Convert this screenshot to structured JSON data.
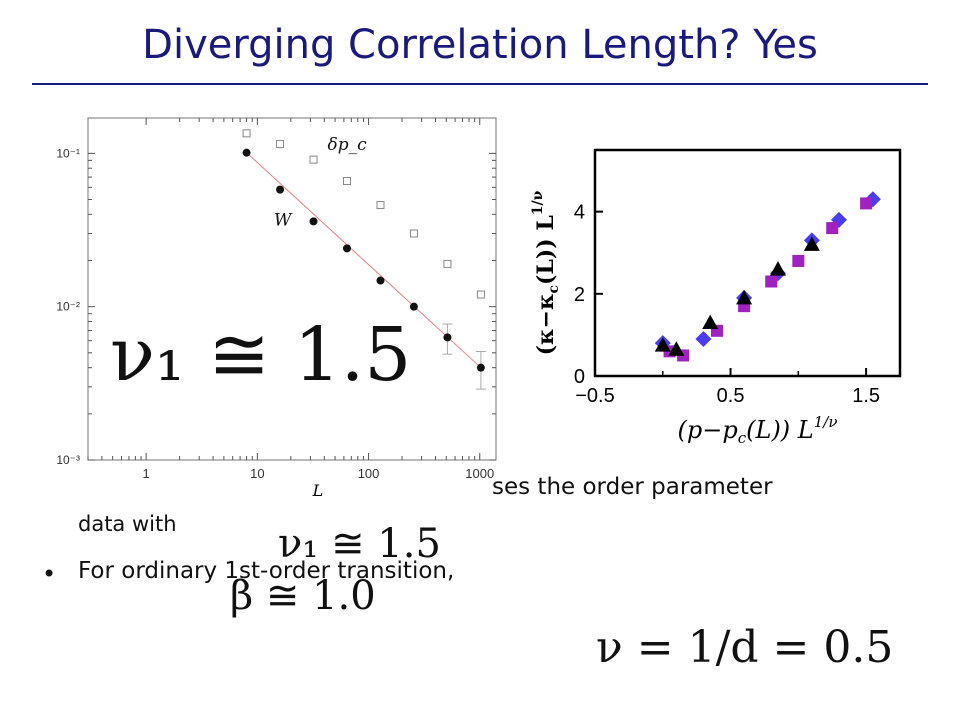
{
  "slide": {
    "title": "Diverging Correlation Length? Yes",
    "text_line1_visible": "ses the order parameter",
    "text_line2": "data with",
    "bullet_text": "For ordinary 1st-order transition,",
    "eq_nu1": "ν₁ ≅ 1.5",
    "eq_nu1_small": "ν₁ ≅ 1.5",
    "eq_beta": "β ≅ 1.0",
    "eq_nu_d": "ν = 1/d = 0.5"
  },
  "chart_data": [
    {
      "type": "scatter",
      "x_scale": "log",
      "y_scale": "log",
      "xlim": [
        0.3,
        1400
      ],
      "ylim": [
        0.001,
        0.17
      ],
      "xlabel": "L",
      "x_ticks": [
        1,
        10,
        100,
        1000
      ],
      "x_tick_labels": [
        "1",
        "10",
        "100",
        "1000"
      ],
      "y_ticks": [
        0.001,
        0.01,
        0.1
      ],
      "y_tick_labels": [
        "10⁻³",
        "10⁻²",
        "10⁻¹"
      ],
      "series": [
        {
          "name": "δp_c",
          "marker": "open-square",
          "color": "#888888",
          "x": [
            8,
            16,
            32,
            64,
            128,
            256,
            512,
            1024
          ],
          "y": [
            0.135,
            0.115,
            0.091,
            0.066,
            0.046,
            0.03,
            0.019,
            0.012
          ]
        },
        {
          "name": "W",
          "marker": "filled-circle",
          "color": "#111111",
          "x": [
            8,
            16,
            32,
            64,
            128,
            256,
            512,
            1024
          ],
          "y": [
            0.101,
            0.058,
            0.036,
            0.024,
            0.0148,
            0.01,
            0.0063,
            0.004
          ],
          "err": [
            0,
            0,
            0,
            0,
            0,
            0,
            0.0014,
            0.0011
          ]
        }
      ],
      "fit_line": {
        "x": [
          8,
          1024
        ],
        "y": [
          0.101,
          0.004
        ],
        "color": "#e88080"
      }
    },
    {
      "type": "scatter",
      "xlim": [
        -0.5,
        1.75
      ],
      "ylim": [
        0,
        5.5
      ],
      "xlabel": "(p−pс(L)) L^{1/ν}",
      "ylabel": "(κ−κс(L)) L^{1/ν}",
      "x_ticks": [
        -0.5,
        0.5,
        1.5
      ],
      "x_tick_labels": [
        "−0.5",
        "0.5",
        "1.5"
      ],
      "y_ticks": [
        0,
        2,
        4
      ],
      "y_tick_labels": [
        "0",
        "2",
        "4"
      ],
      "series": [
        {
          "marker": "diamond",
          "color": "#4a3cf0",
          "x": [
            0.0,
            0.3,
            0.6,
            0.85,
            1.1,
            1.3,
            1.55
          ],
          "y": [
            0.8,
            0.9,
            1.9,
            2.5,
            3.3,
            3.8,
            4.3
          ]
        },
        {
          "marker": "square",
          "color": "#a020c0",
          "x": [
            0.05,
            0.15,
            0.4,
            0.6,
            0.8,
            1.0,
            1.25,
            1.5
          ],
          "y": [
            0.6,
            0.5,
            1.1,
            1.7,
            2.3,
            2.8,
            3.6,
            4.2
          ]
        },
        {
          "marker": "triangle",
          "color": "#000000",
          "x": [
            0.0,
            0.1,
            0.35,
            0.6,
            0.85,
            1.1
          ],
          "y": [
            0.75,
            0.65,
            1.3,
            1.9,
            2.6,
            3.2
          ]
        }
      ]
    }
  ]
}
